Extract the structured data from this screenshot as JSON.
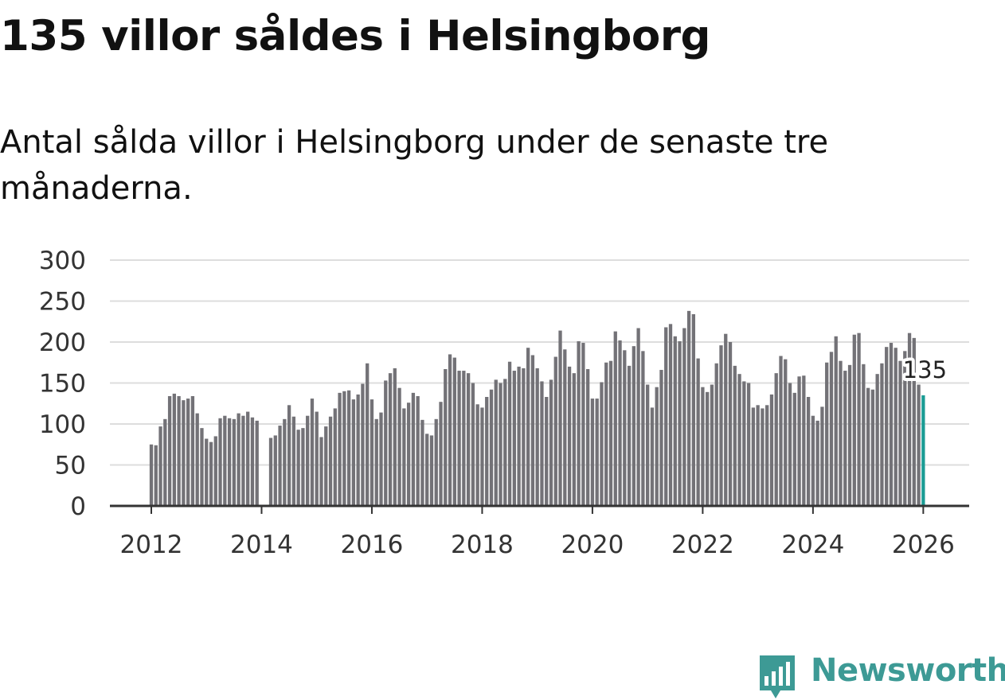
{
  "header": {
    "title": "135 villor såldes i Helsingborg",
    "subtitle": "Antal sålda villor i Helsingborg under de senaste tre månaderna."
  },
  "brand": {
    "name": "Newsworthy",
    "color": "#3d9a95",
    "logo_icon": "bar-chart-speech-bubble-icon"
  },
  "colors": {
    "bar": "#737277",
    "highlight": "#1a9c94",
    "grid": "#dddddd",
    "axis": "#333333"
  },
  "chart_data": {
    "type": "bar",
    "title": "135 villor såldes i Helsingborg",
    "subtitle": "Antal sålda villor i Helsingborg under de senaste tre månaderna.",
    "xlabel": "",
    "ylabel": "",
    "ylim": [
      0,
      300
    ],
    "yticks": [
      0,
      50,
      100,
      150,
      200,
      250,
      300
    ],
    "xticks": [
      "2012",
      "2014",
      "2016",
      "2018",
      "2020",
      "2022",
      "2024",
      "2026"
    ],
    "start": "2012-01",
    "highlight_label": "135",
    "series": [
      {
        "name": "Antal sålda villor",
        "values": [
          75,
          74,
          97,
          106,
          134,
          137,
          134,
          129,
          131,
          134,
          113,
          95,
          82,
          78,
          85,
          107,
          110,
          107,
          106,
          113,
          110,
          115,
          108,
          104,
          null,
          null,
          83,
          86,
          98,
          106,
          123,
          109,
          93,
          95,
          110,
          131,
          115,
          84,
          97,
          109,
          119,
          138,
          140,
          141,
          130,
          136,
          149,
          174,
          130,
          106,
          114,
          153,
          162,
          168,
          144,
          119,
          126,
          138,
          134,
          105,
          88,
          86,
          106,
          127,
          167,
          185,
          181,
          165,
          165,
          162,
          150,
          124,
          120,
          133,
          142,
          154,
          150,
          155,
          176,
          165,
          170,
          168,
          193,
          184,
          168,
          152,
          133,
          154,
          182,
          214,
          191,
          170,
          162,
          201,
          199,
          167,
          131,
          131,
          151,
          175,
          177,
          213,
          202,
          190,
          171,
          195,
          217,
          189,
          148,
          120,
          145,
          166,
          218,
          222,
          207,
          201,
          217,
          238,
          234,
          180,
          145,
          139,
          148,
          174,
          196,
          210,
          200,
          171,
          161,
          152,
          150,
          120,
          123,
          119,
          123,
          136,
          162,
          183,
          179,
          150,
          138,
          158,
          159,
          133,
          110,
          104,
          121,
          175,
          188,
          207,
          177,
          165,
          172,
          209,
          211,
          173,
          144,
          142,
          161,
          174,
          194,
          199,
          193,
          177,
          189,
          211,
          205,
          148,
          135
        ]
      }
    ]
  }
}
